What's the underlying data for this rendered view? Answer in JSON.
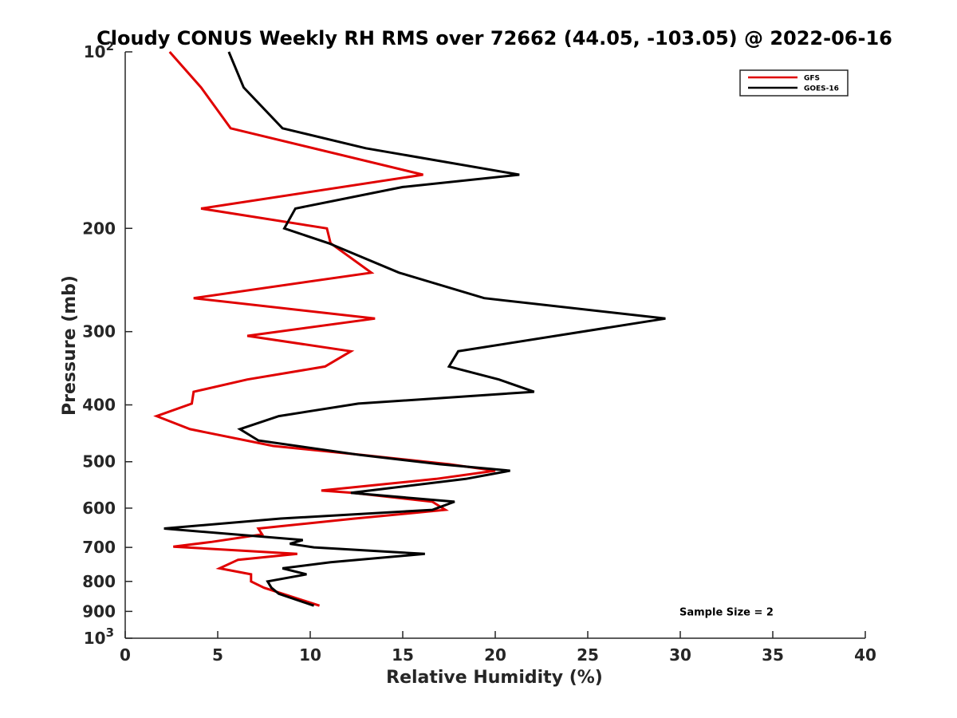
{
  "chart_data": {
    "type": "line",
    "title": "Cloudy CONUS Weekly RH RMS over 72662 (44.05, -103.05) @ 2022-06-16",
    "xlabel": "Relative Humidity (%)",
    "ylabel": "Pressure (mb)",
    "xlim": [
      0,
      40
    ],
    "ylim": [
      100,
      1000
    ],
    "yscale": "log",
    "yreversed": true,
    "grid": false,
    "legend_position": "top-right",
    "x_ticks": [
      0,
      5,
      10,
      15,
      20,
      25,
      30,
      35,
      40
    ],
    "x_tick_labels": [
      "0",
      "5",
      "10",
      "15",
      "20",
      "25",
      "30",
      "35",
      "40"
    ],
    "y_ticks": [
      200,
      300,
      400,
      500,
      600,
      700,
      800,
      900
    ],
    "y_tick_labels": [
      "200",
      "300",
      "400",
      "500",
      "600",
      "700",
      "800",
      "900"
    ],
    "y_decade_labels": [
      {
        "value": 100,
        "base": "10",
        "exp": "2"
      },
      {
        "value": 1000,
        "base": "10",
        "exp": "3"
      }
    ],
    "series": [
      {
        "name": "GFS",
        "color": "#e00000",
        "points": [
          [
            2.4,
            100
          ],
          [
            4.1,
            115
          ],
          [
            5.7,
            135
          ],
          [
            16.1,
            162
          ],
          [
            4.1,
            185
          ],
          [
            10.9,
            200
          ],
          [
            11.1,
            212
          ],
          [
            13.3,
            238
          ],
          [
            3.7,
            263
          ],
          [
            13.5,
            285
          ],
          [
            6.6,
            305
          ],
          [
            12.2,
            324
          ],
          [
            10.8,
            344
          ],
          [
            6.6,
            362
          ],
          [
            3.7,
            380
          ],
          [
            3.6,
            398
          ],
          [
            1.7,
            418
          ],
          [
            3.5,
            440
          ],
          [
            8.0,
            470
          ],
          [
            12.8,
            487
          ],
          [
            17.5,
            505
          ],
          [
            20.0,
            518
          ],
          [
            16.8,
            535
          ],
          [
            10.6,
            560
          ],
          [
            12.3,
            565
          ],
          [
            16.6,
            585
          ],
          [
            17.3,
            604
          ],
          [
            12.4,
            625
          ],
          [
            7.2,
            650
          ],
          [
            7.4,
            665
          ],
          [
            4.7,
            685
          ],
          [
            2.6,
            698
          ],
          [
            9.3,
            718
          ],
          [
            6.1,
            735
          ],
          [
            5.1,
            760
          ],
          [
            6.8,
            778
          ],
          [
            6.8,
            800
          ],
          [
            7.5,
            820
          ],
          [
            10.5,
            880
          ]
        ]
      },
      {
        "name": "GOES-16",
        "color": "#000000",
        "points": [
          [
            5.6,
            100
          ],
          [
            6.4,
            115
          ],
          [
            8.5,
            135
          ],
          [
            13.0,
            146
          ],
          [
            21.3,
            162
          ],
          [
            15.0,
            170
          ],
          [
            9.2,
            185
          ],
          [
            8.6,
            200
          ],
          [
            11.0,
            212
          ],
          [
            14.8,
            238
          ],
          [
            19.4,
            263
          ],
          [
            29.2,
            285
          ],
          [
            18.0,
            324
          ],
          [
            17.5,
            344
          ],
          [
            20.2,
            362
          ],
          [
            22.1,
            380
          ],
          [
            12.6,
            398
          ],
          [
            8.3,
            418
          ],
          [
            6.2,
            440
          ],
          [
            7.2,
            460
          ],
          [
            12.7,
            487
          ],
          [
            17.0,
            505
          ],
          [
            20.8,
            518
          ],
          [
            18.4,
            535
          ],
          [
            12.2,
            565
          ],
          [
            17.8,
            585
          ],
          [
            16.6,
            604
          ],
          [
            8.4,
            625
          ],
          [
            2.1,
            650
          ],
          [
            9.6,
            680
          ],
          [
            8.9,
            690
          ],
          [
            10.2,
            700
          ],
          [
            16.2,
            718
          ],
          [
            11.1,
            742
          ],
          [
            8.5,
            760
          ],
          [
            9.8,
            778
          ],
          [
            7.7,
            800
          ],
          [
            7.9,
            820
          ],
          [
            8.3,
            840
          ],
          [
            10.2,
            880
          ]
        ]
      }
    ],
    "annotations": [
      {
        "text": "Sample Size = 2",
        "x": 32.5,
        "y": 900
      }
    ]
  }
}
